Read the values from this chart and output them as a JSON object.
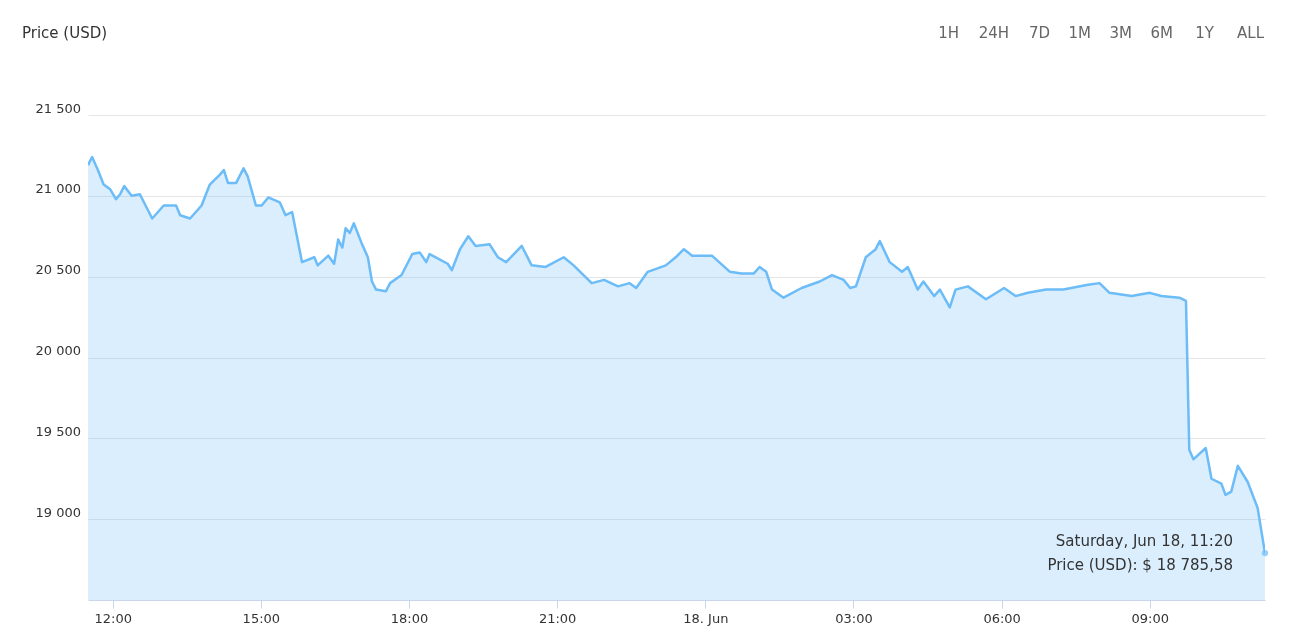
{
  "chart_data": {
    "type": "area",
    "title": "Price (USD)",
    "x": [
      "--06-17T11:30",
      "--06-17T11:35",
      "--06-17T11:42",
      "--06-17T11:49",
      "--06-17T11:57",
      "--06-17T12:04",
      "--06-17T12:09",
      "--06-17T12:14",
      "--06-17T12:23",
      "--06-17T12:33",
      "--06-17T12:48",
      "--06-17T13:02",
      "--06-17T13:17",
      "--06-17T13:22",
      "--06-17T13:34",
      "--06-17T13:48",
      "--06-17T13:58",
      "--06-17T14:10",
      "--06-17T14:15",
      "--06-17T14:20",
      "--06-17T14:30",
      "--06-17T14:39",
      "--06-17T14:44",
      "--06-17T14:54",
      "--06-17T15:01",
      "--06-17T15:09",
      "--06-17T15:23",
      "--06-17T15:30",
      "--06-17T15:38",
      "--06-17T15:50",
      "--06-17T16:05",
      "--06-17T16:09",
      "--06-17T16:22",
      "--06-17T16:29",
      "--06-17T16:34",
      "--06-17T16:39",
      "--06-17T16:43",
      "--06-17T16:48",
      "--06-17T16:53",
      "--06-17T17:03",
      "--06-17T17:10",
      "--06-17T17:15",
      "--06-17T17:20",
      "--06-17T17:32",
      "--06-17T17:37",
      "--06-17T17:51",
      "--06-17T18:04",
      "--06-17T18:13",
      "--06-17T18:21",
      "--06-17T18:25",
      "--06-17T18:47",
      "--06-17T18:52",
      "--06-17T19:02",
      "--06-17T19:12",
      "--06-17T19:21",
      "--06-17T19:38",
      "--06-17T19:48",
      "--06-17T19:58",
      "--06-17T20:17",
      "--06-17T20:29",
      "--06-17T20:46",
      "--06-17T21:08",
      "--06-17T21:20",
      "--06-17T21:42",
      "--06-17T21:57",
      "--06-17T22:14",
      "--06-17T22:28",
      "--06-17T22:36",
      "--06-17T22:50",
      "--06-17T23:12",
      "--06-17T23:24",
      "--06-17T23:34",
      "--06-17T23:44",
      "--06-18T00:08",
      "--06-18T00:30",
      "--06-18T00:44",
      "--06-18T00:59",
      "--06-18T01:06",
      "--06-18T01:14",
      "--06-18T01:21",
      "--06-18T01:35",
      "--06-18T01:57",
      "--06-18T02:19",
      "--06-18T02:34",
      "--06-18T02:48",
      "--06-18T02:56",
      "--06-18T03:03",
      "--06-18T03:15",
      "--06-18T03:27",
      "--06-18T03:32",
      "--06-18T03:44",
      "--06-18T03:59",
      "--06-18T04:06",
      "--06-18T04:18",
      "--06-18T04:25",
      "--06-18T04:38",
      "--06-18T04:45",
      "--06-18T04:57",
      "--06-18T05:04",
      "--06-18T05:19",
      "--06-18T05:41",
      "--06-18T06:03",
      "--06-18T06:17",
      "--06-18T06:32",
      "--06-18T06:54",
      "--06-18T07:15",
      "--06-18T07:45",
      "--06-18T07:59",
      "--06-18T08:11",
      "--06-18T08:38",
      "--06-18T09:00",
      "--06-18T09:14",
      "--06-18T09:36",
      "--06-18T09:44",
      "--06-18T09:48",
      "--06-18T09:53",
      "--06-18T10:08",
      "--06-18T10:15",
      "--06-18T10:27",
      "--06-18T10:32",
      "--06-18T10:39",
      "--06-18T10:47",
      "--06-18T10:59",
      "--06-18T11:11",
      "--06-18T11:20"
    ],
    "series": [
      {
        "color": "#6cbcf8",
        "values": [
          21190,
          21240,
          21160,
          21070,
          21040,
          20980,
          21010,
          21060,
          21000,
          21010,
          20860,
          20940,
          20940,
          20880,
          20860,
          20940,
          21070,
          21130,
          21160,
          21080,
          21080,
          21170,
          21120,
          20940,
          20940,
          20990,
          20960,
          20880,
          20900,
          20590,
          20620,
          20570,
          20630,
          20580,
          20730,
          20680,
          20800,
          20770,
          20830,
          20700,
          20620,
          20470,
          20420,
          20410,
          20460,
          20510,
          20640,
          20650,
          20590,
          20640,
          20580,
          20540,
          20670,
          20750,
          20690,
          20700,
          20620,
          20590,
          20690,
          20570,
          20560,
          20620,
          20570,
          20460,
          20480,
          20440,
          20460,
          20430,
          20530,
          20570,
          20620,
          20670,
          20630,
          20630,
          20530,
          20520,
          20520,
          20560,
          20530,
          20420,
          20370,
          20430,
          20470,
          20510,
          20480,
          20430,
          20440,
          20620,
          20670,
          20720,
          20590,
          20530,
          20560,
          20420,
          20470,
          20380,
          20420,
          20310,
          20420,
          20440,
          20360,
          20430,
          20380,
          20400,
          20420,
          20420,
          20450,
          20460,
          20400,
          20380,
          20400,
          20380,
          20370,
          20350,
          19430,
          19370,
          19440,
          19250,
          19220,
          19150,
          19170,
          19330,
          19230,
          19070,
          18790
        ]
      }
    ],
    "xlim": [
      "--06-17T11:30",
      "--06-18T11:20"
    ],
    "xticks": [
      {
        "value": "--06-17T12:00",
        "label": "12:00"
      },
      {
        "value": "--06-17T15:00",
        "label": "15:00"
      },
      {
        "value": "--06-17T18:00",
        "label": "18:00"
      },
      {
        "value": "--06-17T21:00",
        "label": "21:00"
      },
      {
        "value": "--06-18T00:00",
        "label": "18. Jun"
      },
      {
        "value": "--06-18T03:00",
        "label": "03:00"
      },
      {
        "value": "--06-18T06:00",
        "label": "06:00"
      },
      {
        "value": "--06-18T09:00",
        "label": "09:00"
      }
    ],
    "ylim": [
      18500,
      21500
    ],
    "yticks": [
      {
        "value": 19000,
        "label": "19 000"
      },
      {
        "value": 19500,
        "label": "19 500"
      },
      {
        "value": 20000,
        "label": "20 000"
      },
      {
        "value": 20500,
        "label": "20 500"
      },
      {
        "value": 21000,
        "label": "21 000"
      },
      {
        "value": 21500,
        "label": "21 500"
      }
    ],
    "grid": "y",
    "annotations": [
      "1H",
      "24H",
      "7D",
      "1M",
      "3M",
      "6M",
      "1Y",
      "ALL",
      {
        "text": "Saturday, Jun 18, 11:20",
        "x": "--06-18T11:20",
        "y": 18790
      },
      {
        "text": "Price (USD): $ 18 785,58",
        "x": "--06-18T11:20",
        "y": 18790
      }
    ]
  }
}
